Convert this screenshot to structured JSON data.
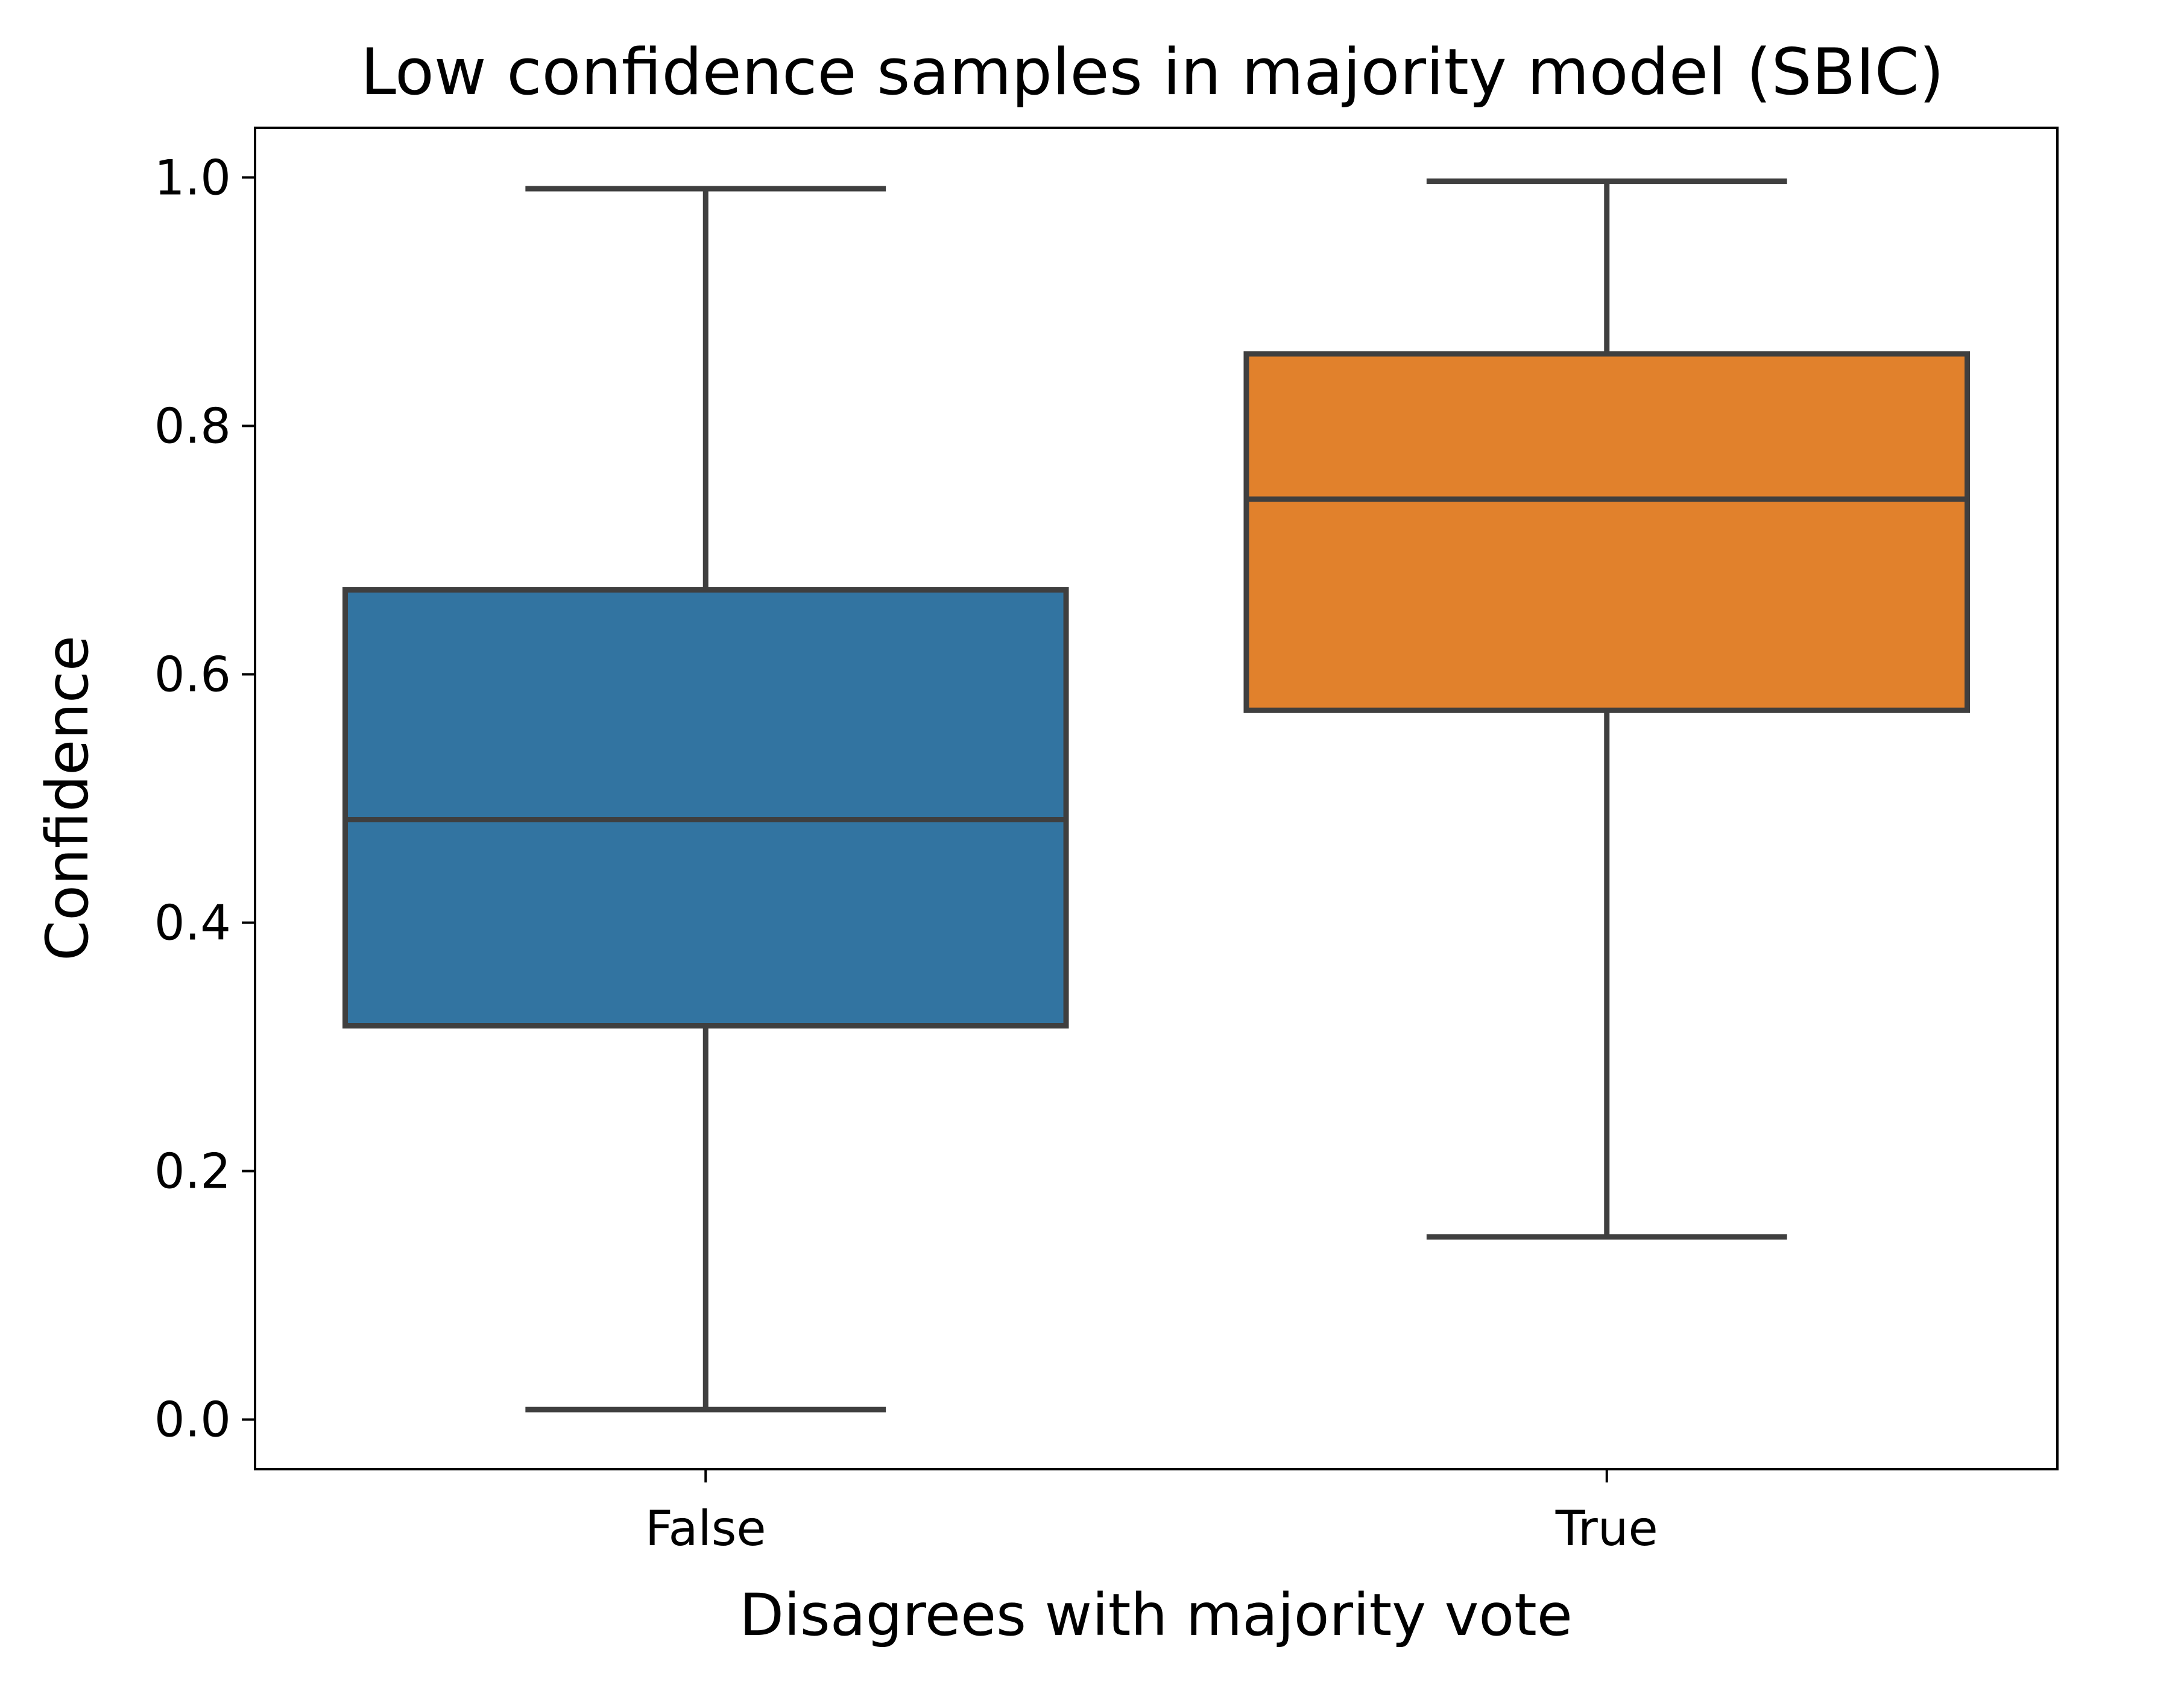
{
  "chart_data": {
    "type": "boxplot",
    "title": "Low confidence samples in majority model (SBIC)",
    "xlabel": "Disagrees with majority vote",
    "ylabel": "Confidence",
    "categories": [
      "False",
      "True"
    ],
    "ylim": [
      -0.04,
      1.04
    ],
    "yticks": [
      "0.0",
      "0.2",
      "0.4",
      "0.6",
      "0.8",
      "1.0"
    ],
    "boxes": [
      {
        "category": "False",
        "whisker_low": 0.008,
        "q1": 0.317,
        "median": 0.483,
        "q3": 0.668,
        "whisker_high": 0.991,
        "color": "#3274a1"
      },
      {
        "category": "True",
        "whisker_low": 0.147,
        "q1": 0.571,
        "median": 0.741,
        "q3": 0.858,
        "whisker_high": 0.997,
        "color": "#e1812c"
      }
    ],
    "grid": false,
    "legend": "none"
  }
}
